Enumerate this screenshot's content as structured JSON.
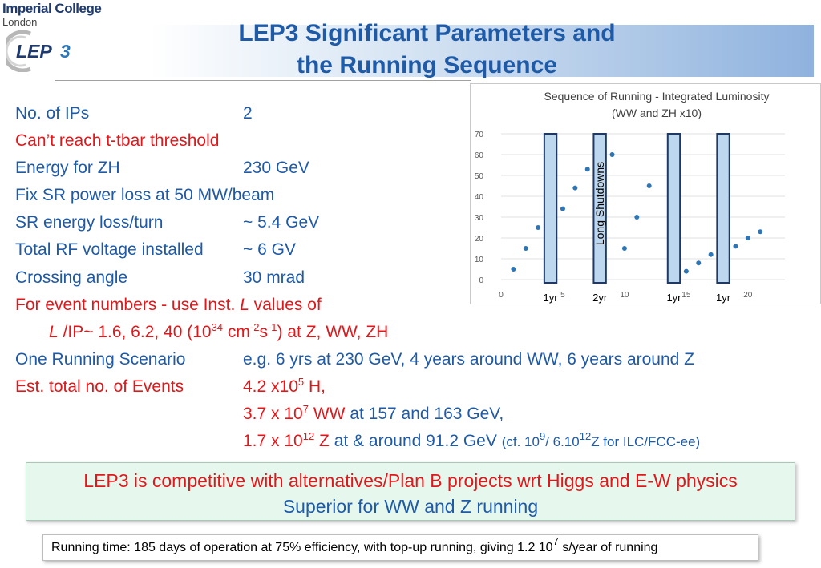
{
  "logo": {
    "institution": "Imperial College",
    "city": "London",
    "project_mark": "LEP",
    "project_number": "3"
  },
  "title": {
    "line1": "LEP3 Significant Parameters and",
    "line2": "the Running Sequence"
  },
  "params": [
    {
      "label": "No. of IPs",
      "value": "2"
    },
    {
      "label": "Can’t reach t-tbar threshold"
    },
    {
      "label": "Energy for ZH",
      "value": "230 GeV"
    },
    {
      "label": "Fix SR power loss at 50 MW/beam"
    },
    {
      "label": "SR energy loss/turn",
      "value": "~ 5.4 GeV"
    },
    {
      "label": "Total RF voltage installed",
      "value": "~ 6 GV"
    },
    {
      "label": "Crossing angle",
      "value": "30 mrad"
    }
  ],
  "event_numbers": {
    "intro": "For event numbers - use Inst.",
    "symbol": "L",
    "intro_tail": "values of",
    "line2_symbol": "L",
    "line2_a": "/IP~ 1.6, 6.2, 40 (10",
    "line2_exp1": "34",
    "line2_b": "cm",
    "line2_exp2": "-2",
    "line2_c": "s",
    "line2_exp3": "-1",
    "line2_d": ") at Z, WW, ZH"
  },
  "scenario": {
    "label": "One Running Scenario",
    "value": "e.g. 6 yrs at 230 GeV, 4 years around WW, 6 years around Z"
  },
  "events": {
    "label": "Est. total no. of Events",
    "h_a": "4.2 x10",
    "h_exp": "5",
    "h_b": "H,",
    "ww_a": "3.7 x 10",
    "ww_exp": "7",
    "ww_b": "WW",
    "ww_c": "at 157 and 163 GeV,",
    "z_a": "1.7 x 10",
    "z_exp": "12",
    "z_b": "Z",
    "z_c": "at & around 91.2 GeV",
    "cf_a": "(cf. 10",
    "cf_exp1": "9",
    "cf_b": "/ 6.10",
    "cf_exp2": "12",
    "cf_c": "Z for ILC/FCC-ee)"
  },
  "callout": {
    "line1": "LEP3 is competitive with alternatives/Plan B projects wrt Higgs and E-W physics",
    "line2": "Superior for WW and Z running"
  },
  "footnote": {
    "text_a": "Running time: 185 days of operation at 75% efficiency, with top-up running, giving 1.2 10",
    "text_exp": "7",
    "text_b": " s/year of running"
  },
  "chart_data": {
    "type": "scatter",
    "title": "Sequence of Running  - Integrated Luminosity",
    "subtitle": "(WW and ZH x10)",
    "xlim": [
      0,
      23
    ],
    "ylim": [
      0,
      70
    ],
    "x_ticks": [
      0,
      5,
      10,
      15,
      20
    ],
    "y_ticks": [
      0,
      10,
      20,
      30,
      40,
      50,
      60,
      70
    ],
    "points_x": [
      1,
      2,
      3,
      5,
      6,
      7,
      9,
      10,
      11,
      12,
      15,
      16,
      17,
      19,
      20,
      21
    ],
    "points_y": [
      5,
      15,
      25,
      34,
      44,
      53,
      60,
      15,
      30,
      45,
      4,
      8,
      12,
      16,
      20,
      23
    ],
    "shutdowns": [
      {
        "x_start": 3.5,
        "x_end": 4.5,
        "label": "1yr"
      },
      {
        "x_start": 7.5,
        "x_end": 8.5,
        "label": "2yr"
      },
      {
        "x_start": 13.5,
        "x_end": 14.5,
        "label": "1yr"
      },
      {
        "x_start": 17.5,
        "x_end": 18.5,
        "label": "1yr"
      }
    ],
    "shutdown_label": "Long Shutdowns",
    "colors": {
      "point": "#2e75b6",
      "bar_fill": "#bdd7ee",
      "bar_stroke": "#1f3864",
      "grid": "#e0e0e0"
    }
  }
}
